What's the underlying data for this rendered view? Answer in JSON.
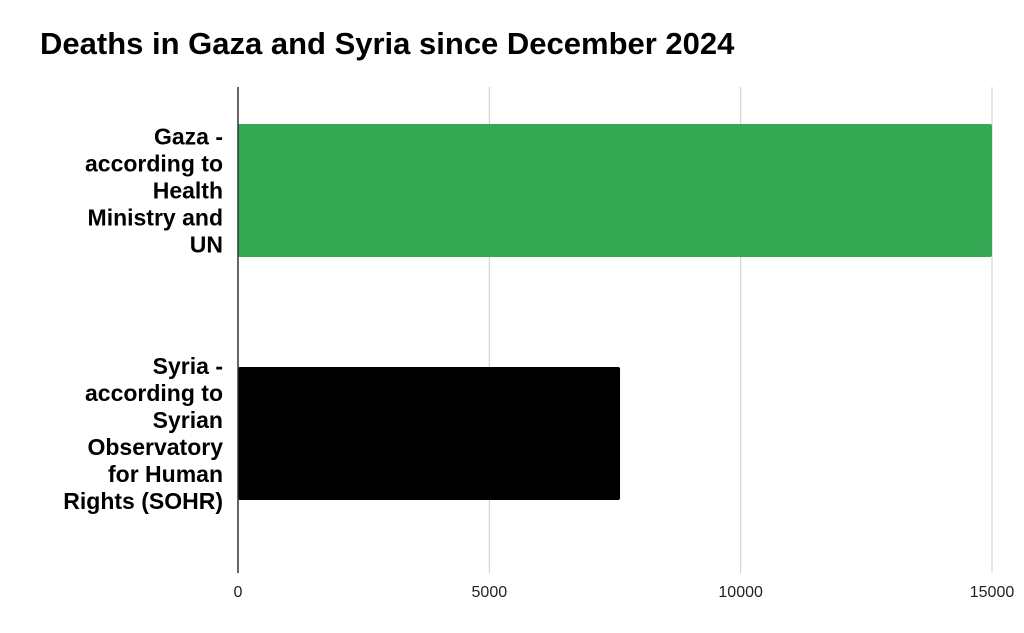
{
  "chart_data": {
    "type": "bar",
    "orientation": "horizontal",
    "title": "Deaths in Gaza and Syria since December 2024",
    "xlabel": "",
    "ylabel": "",
    "categories": [
      "Gaza - according to Health Ministry and UN",
      "Syria - according to Syrian Observatory for Human Rights (SOHR)"
    ],
    "category_lines": [
      [
        "Gaza -",
        "according to",
        "Health",
        "Ministry and",
        "UN"
      ],
      [
        "Syria -",
        "according to",
        "Syrian",
        "Observatory",
        "for Human",
        "Rights (SOHR)"
      ]
    ],
    "values": [
      15000,
      7600
    ],
    "colors": [
      "#34a853",
      "#000000"
    ],
    "xlim": [
      0,
      15000
    ],
    "x_ticks": [
      0,
      5000,
      10000,
      15000
    ],
    "x_tick_labels": [
      "0",
      "5000",
      "10000",
      "15000"
    ],
    "grid": true,
    "legend": "none"
  }
}
